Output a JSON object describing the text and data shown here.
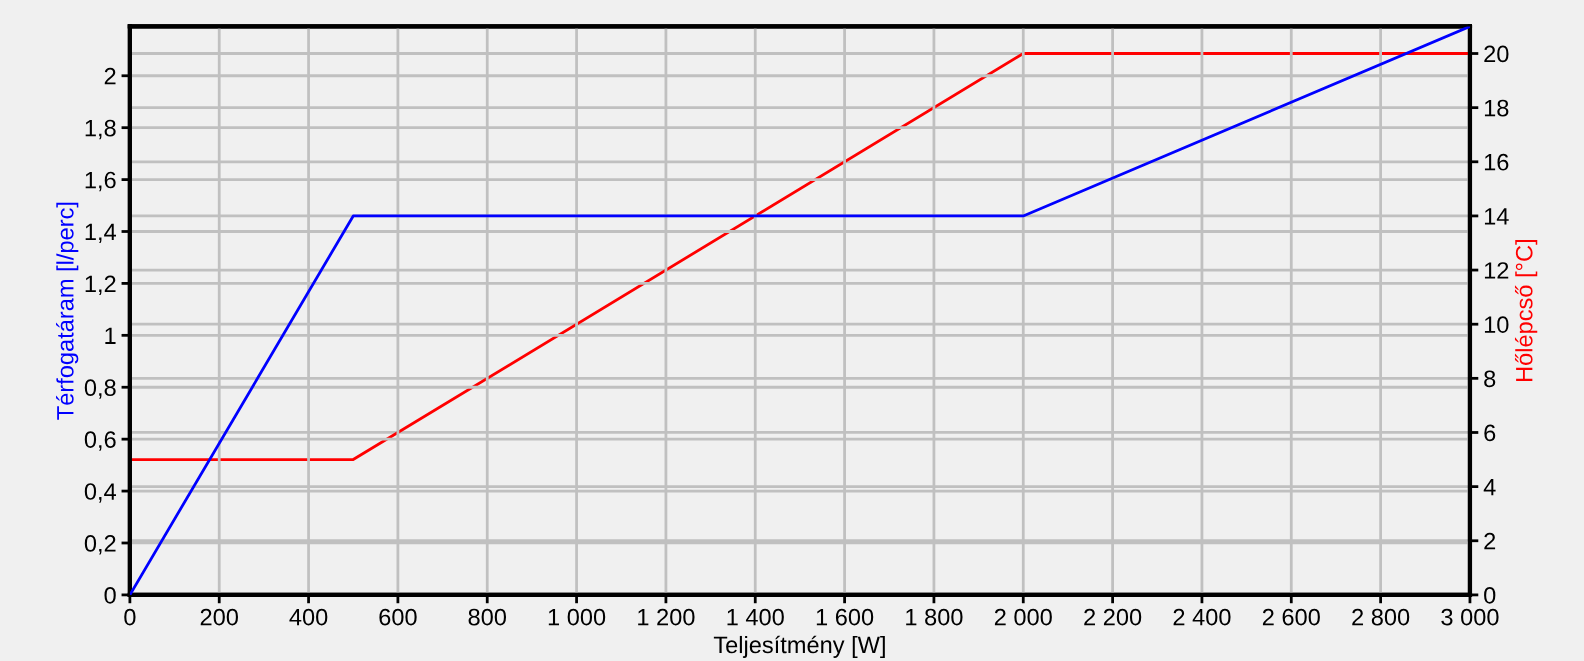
{
  "chart_data": {
    "type": "line",
    "xlabel": "Teljesítmény [W]",
    "ylabel": "Térfogatáram [l/perc]",
    "y2label": "Hőlépcső [°C]",
    "series": [
      {
        "color": "#0000ff",
        "x": [
          0,
          500,
          2000,
          3000
        ],
        "values": [
          0,
          1.46,
          1.46,
          2.19
        ]
      },
      {
        "color": "#ff0000",
        "axis": "y2",
        "x": [
          0,
          500,
          2000,
          3000
        ],
        "values": [
          5,
          5,
          20,
          20
        ]
      }
    ],
    "xlim": [
      0,
      3000
    ],
    "xticks": [
      0,
      200,
      400,
      600,
      800,
      {
        "value": 1000,
        "label": "1 000"
      },
      {
        "value": 1200,
        "label": "1 200"
      },
      {
        "value": 1400,
        "label": "1 400"
      },
      {
        "value": 1600,
        "label": "1 600"
      },
      {
        "value": 1800,
        "label": "1 800"
      },
      {
        "value": 2000,
        "label": "2 000"
      },
      {
        "value": 2200,
        "label": "2 200"
      },
      {
        "value": 2400,
        "label": "2 400"
      },
      {
        "value": 2600,
        "label": "2 600"
      },
      {
        "value": 2800,
        "label": "2 800"
      },
      {
        "value": 3000,
        "label": "3 000"
      }
    ],
    "ylim": [
      0,
      2.19
    ],
    "yticks": [
      0,
      {
        "value": 0.2,
        "label": "0,2"
      },
      {
        "value": 0.4,
        "label": "0,4"
      },
      {
        "value": 0.6,
        "label": "0,6"
      },
      {
        "value": 0.8,
        "label": "0,8"
      },
      1,
      {
        "value": 1.2,
        "label": "1,2"
      },
      {
        "value": 1.4,
        "label": "1,4"
      },
      {
        "value": 1.6,
        "label": "1,6"
      },
      {
        "value": 1.8,
        "label": "1,8"
      },
      2
    ],
    "y2lim": [
      0,
      21
    ],
    "y2ticks": [
      0,
      2,
      4,
      6,
      8,
      10,
      12,
      14,
      16,
      18,
      20
    ],
    "grid": true,
    "marker": "none",
    "line_style": "solid"
  }
}
